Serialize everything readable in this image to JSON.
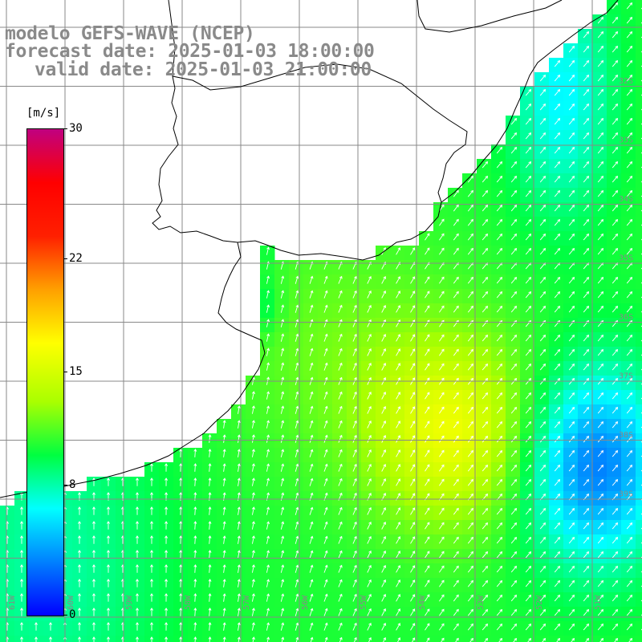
{
  "title": {
    "line1": "modelo GEFS-WAVE (NCEP)",
    "line2": "forecast date: 2025-01-03 18:00:00",
    "line3": "valid date: 2025-01-03 21:00:00"
  },
  "colorbar": {
    "unit": "[m/s]",
    "min": 0,
    "max": 30,
    "tick_labels": [
      "30",
      "22",
      "15",
      "8",
      "0"
    ],
    "tick_values": [
      30,
      22,
      15,
      8,
      0
    ],
    "colors": [
      "#0000ff",
      "#0080ff",
      "#00ffff",
      "#00ff40",
      "#aaff00",
      "#ffff00",
      "#ffa000",
      "#ff2000",
      "#ff0000",
      "#c00080"
    ]
  },
  "map": {
    "lon_labels": [
      "61W",
      "60W",
      "59W",
      "58W",
      "57W",
      "56W",
      "55W",
      "54W",
      "53W",
      "52W",
      "51W"
    ],
    "lat_labels": [
      "32S",
      "33S",
      "34S",
      "35S",
      "36S",
      "37S",
      "38S",
      "39S"
    ],
    "field_description_colors": {
      "land": "#ffffff",
      "coast": "#000000",
      "grid": "#888888"
    }
  }
}
